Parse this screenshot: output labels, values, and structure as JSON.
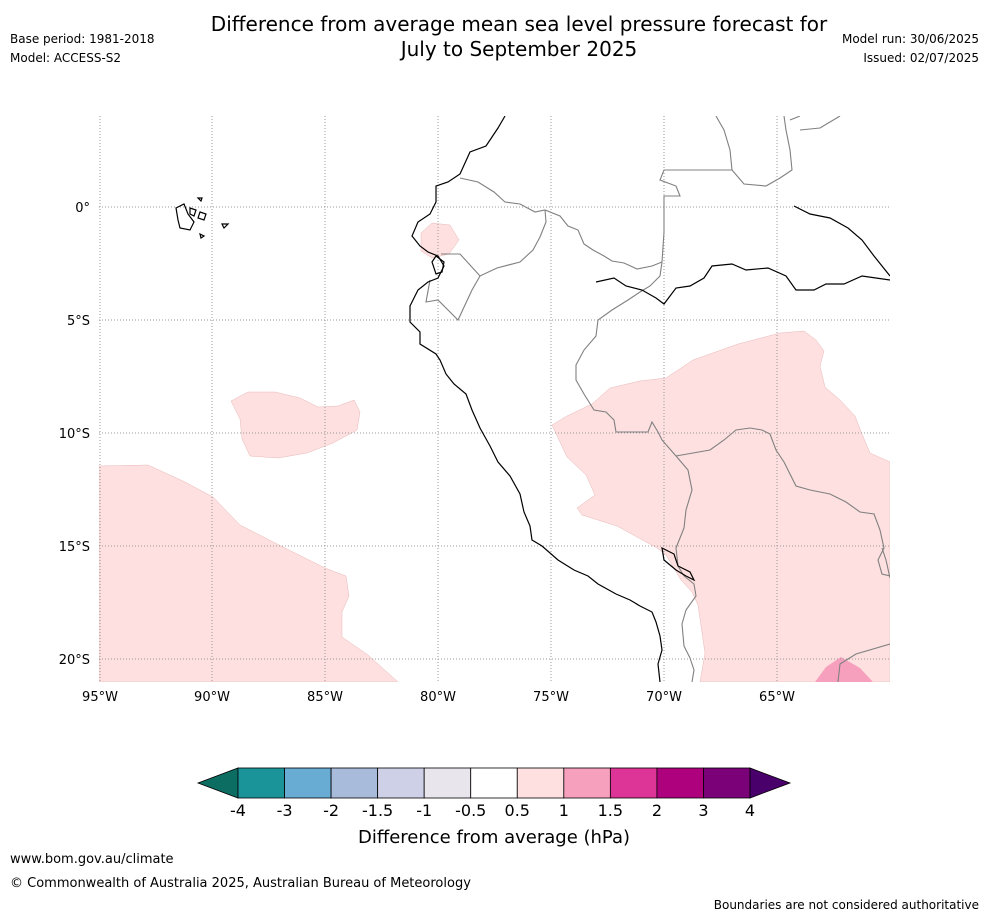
{
  "header": {
    "title_line1": "Difference from average mean sea level pressure forecast for",
    "title_line2": "July to September 2025",
    "base_period": "Base period: 1981-2018",
    "model": "Model: ACCESS-S2",
    "model_run": "Model run: 30/06/2025",
    "issued": "Issued: 02/07/2025"
  },
  "map": {
    "lat_labels": [
      "0°",
      "5°S",
      "10°S",
      "15°S",
      "20°S"
    ],
    "lon_labels": [
      "95°W",
      "90°W",
      "85°W",
      "80°W",
      "75°W",
      "70°W",
      "65°W"
    ],
    "colors": {
      "anomaly_0_5_to_1": "#fde0df",
      "anomaly_1_to_1_5": "#f7a0be",
      "coastline": "#000000",
      "borders": "#808080",
      "gridlines": "#999999"
    }
  },
  "colorbar": {
    "tick_labels": [
      "-4",
      "-3",
      "-2",
      "-1.5",
      "-1",
      "-0.5",
      "0.5",
      "1",
      "1.5",
      "2",
      "3",
      "4"
    ],
    "label": "Difference from average (hPa)",
    "colors": [
      "#0c6e63",
      "#1a9499",
      "#68abd3",
      "#a8bbdb",
      "#cdd0e6",
      "#e8e6ec",
      "#ffffff",
      "#fde0df",
      "#f7a0be",
      "#dd3497",
      "#ae017e",
      "#7a0177",
      "#49006a"
    ]
  },
  "footer": {
    "website": "www.bom.gov.au/climate",
    "copyright": "© Commonwealth of Australia 2025, Australian Bureau of Meteorology",
    "disclaimer": "Boundaries are not considered authoritative"
  }
}
